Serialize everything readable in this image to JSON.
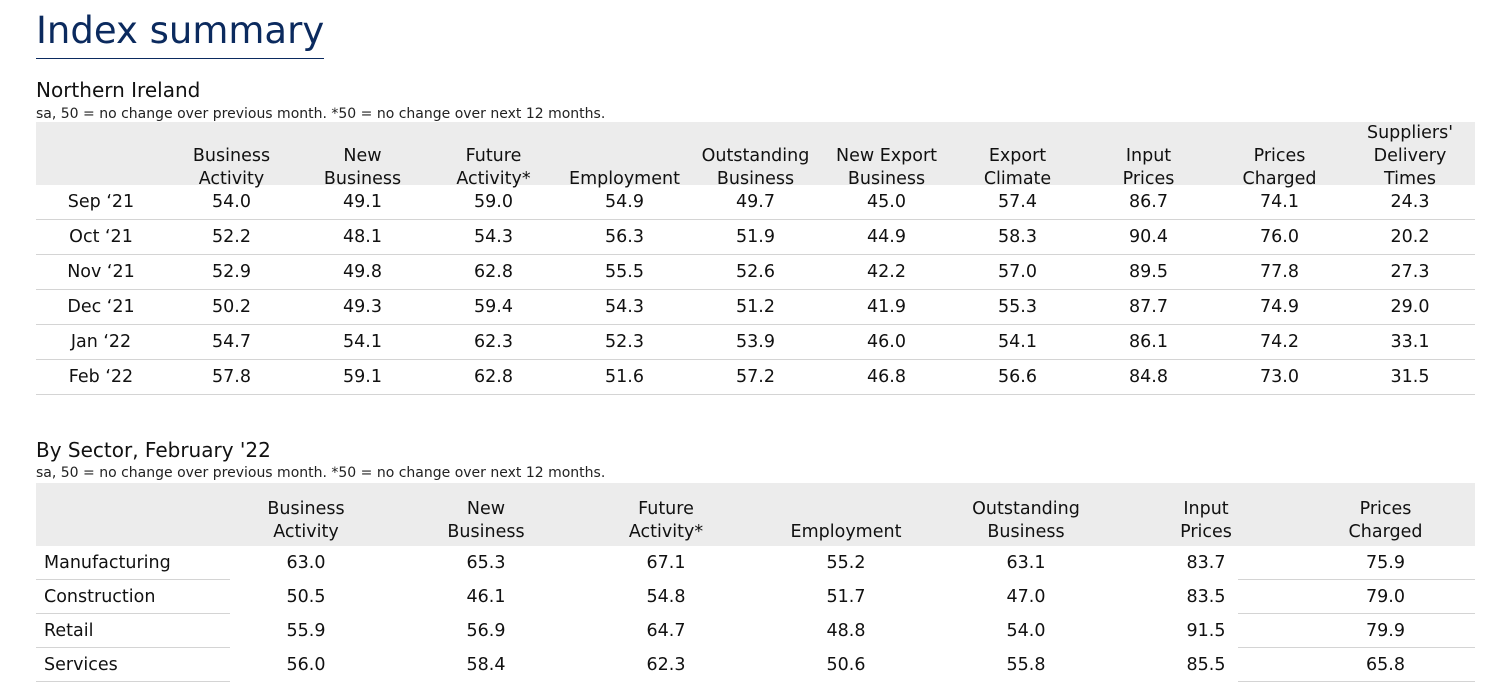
{
  "page_title": "Index summary",
  "section1": {
    "title": "Northern Ireland",
    "note": "sa, 50 = no change over previous month. *50 = no change over next 12 months.",
    "columns": [
      "",
      "Business\nActivity",
      "New\nBusiness",
      "Future\nActivity*",
      "Employment",
      "Outstanding\nBusiness",
      "New Export\nBusiness",
      "Export\nClimate",
      "Input\nPrices",
      "Prices\nCharged",
      "Suppliers'\nDelivery Times"
    ],
    "rows": [
      [
        "Sep ‘21",
        "54.0",
        "49.1",
        "59.0",
        "54.9",
        "49.7",
        "45.0",
        "57.4",
        "86.7",
        "74.1",
        "24.3"
      ],
      [
        "Oct ‘21",
        "52.2",
        "48.1",
        "54.3",
        "56.3",
        "51.9",
        "44.9",
        "58.3",
        "90.4",
        "76.0",
        "20.2"
      ],
      [
        "Nov ‘21",
        "52.9",
        "49.8",
        "62.8",
        "55.5",
        "52.6",
        "42.2",
        "57.0",
        "89.5",
        "77.8",
        "27.3"
      ],
      [
        "Dec ‘21",
        "50.2",
        "49.3",
        "59.4",
        "54.3",
        "51.2",
        "41.9",
        "55.3",
        "87.7",
        "74.9",
        "29.0"
      ],
      [
        "Jan ‘22",
        "54.7",
        "54.1",
        "62.3",
        "52.3",
        "53.9",
        "46.0",
        "54.1",
        "86.1",
        "74.2",
        "33.1"
      ],
      [
        "Feb ‘22",
        "57.8",
        "59.1",
        "62.8",
        "51.6",
        "57.2",
        "46.8",
        "56.6",
        "84.8",
        "73.0",
        "31.5"
      ]
    ]
  },
  "section2": {
    "title": "By Sector, February '22",
    "note": "sa, 50 = no change over previous month. *50 = no change over next 12 months.",
    "columns": [
      "",
      "Business\nActivity",
      "New\nBusiness",
      "Future\nActivity*",
      "Employment",
      "Outstanding\nBusiness",
      "Input\nPrices",
      "Prices\nCharged"
    ],
    "rows": [
      [
        "Manufacturing",
        "63.0",
        "65.3",
        "67.1",
        "55.2",
        "63.1",
        "83.7",
        "75.9"
      ],
      [
        "Construction",
        "50.5",
        "46.1",
        "54.8",
        "51.7",
        "47.0",
        "83.5",
        "79.0"
      ],
      [
        "Retail",
        "55.9",
        "56.9",
        "64.7",
        "48.8",
        "54.0",
        "91.5",
        "79.9"
      ],
      [
        "Services",
        "56.0",
        "58.4",
        "62.3",
        "50.6",
        "55.8",
        "85.5",
        "65.8"
      ]
    ]
  }
}
